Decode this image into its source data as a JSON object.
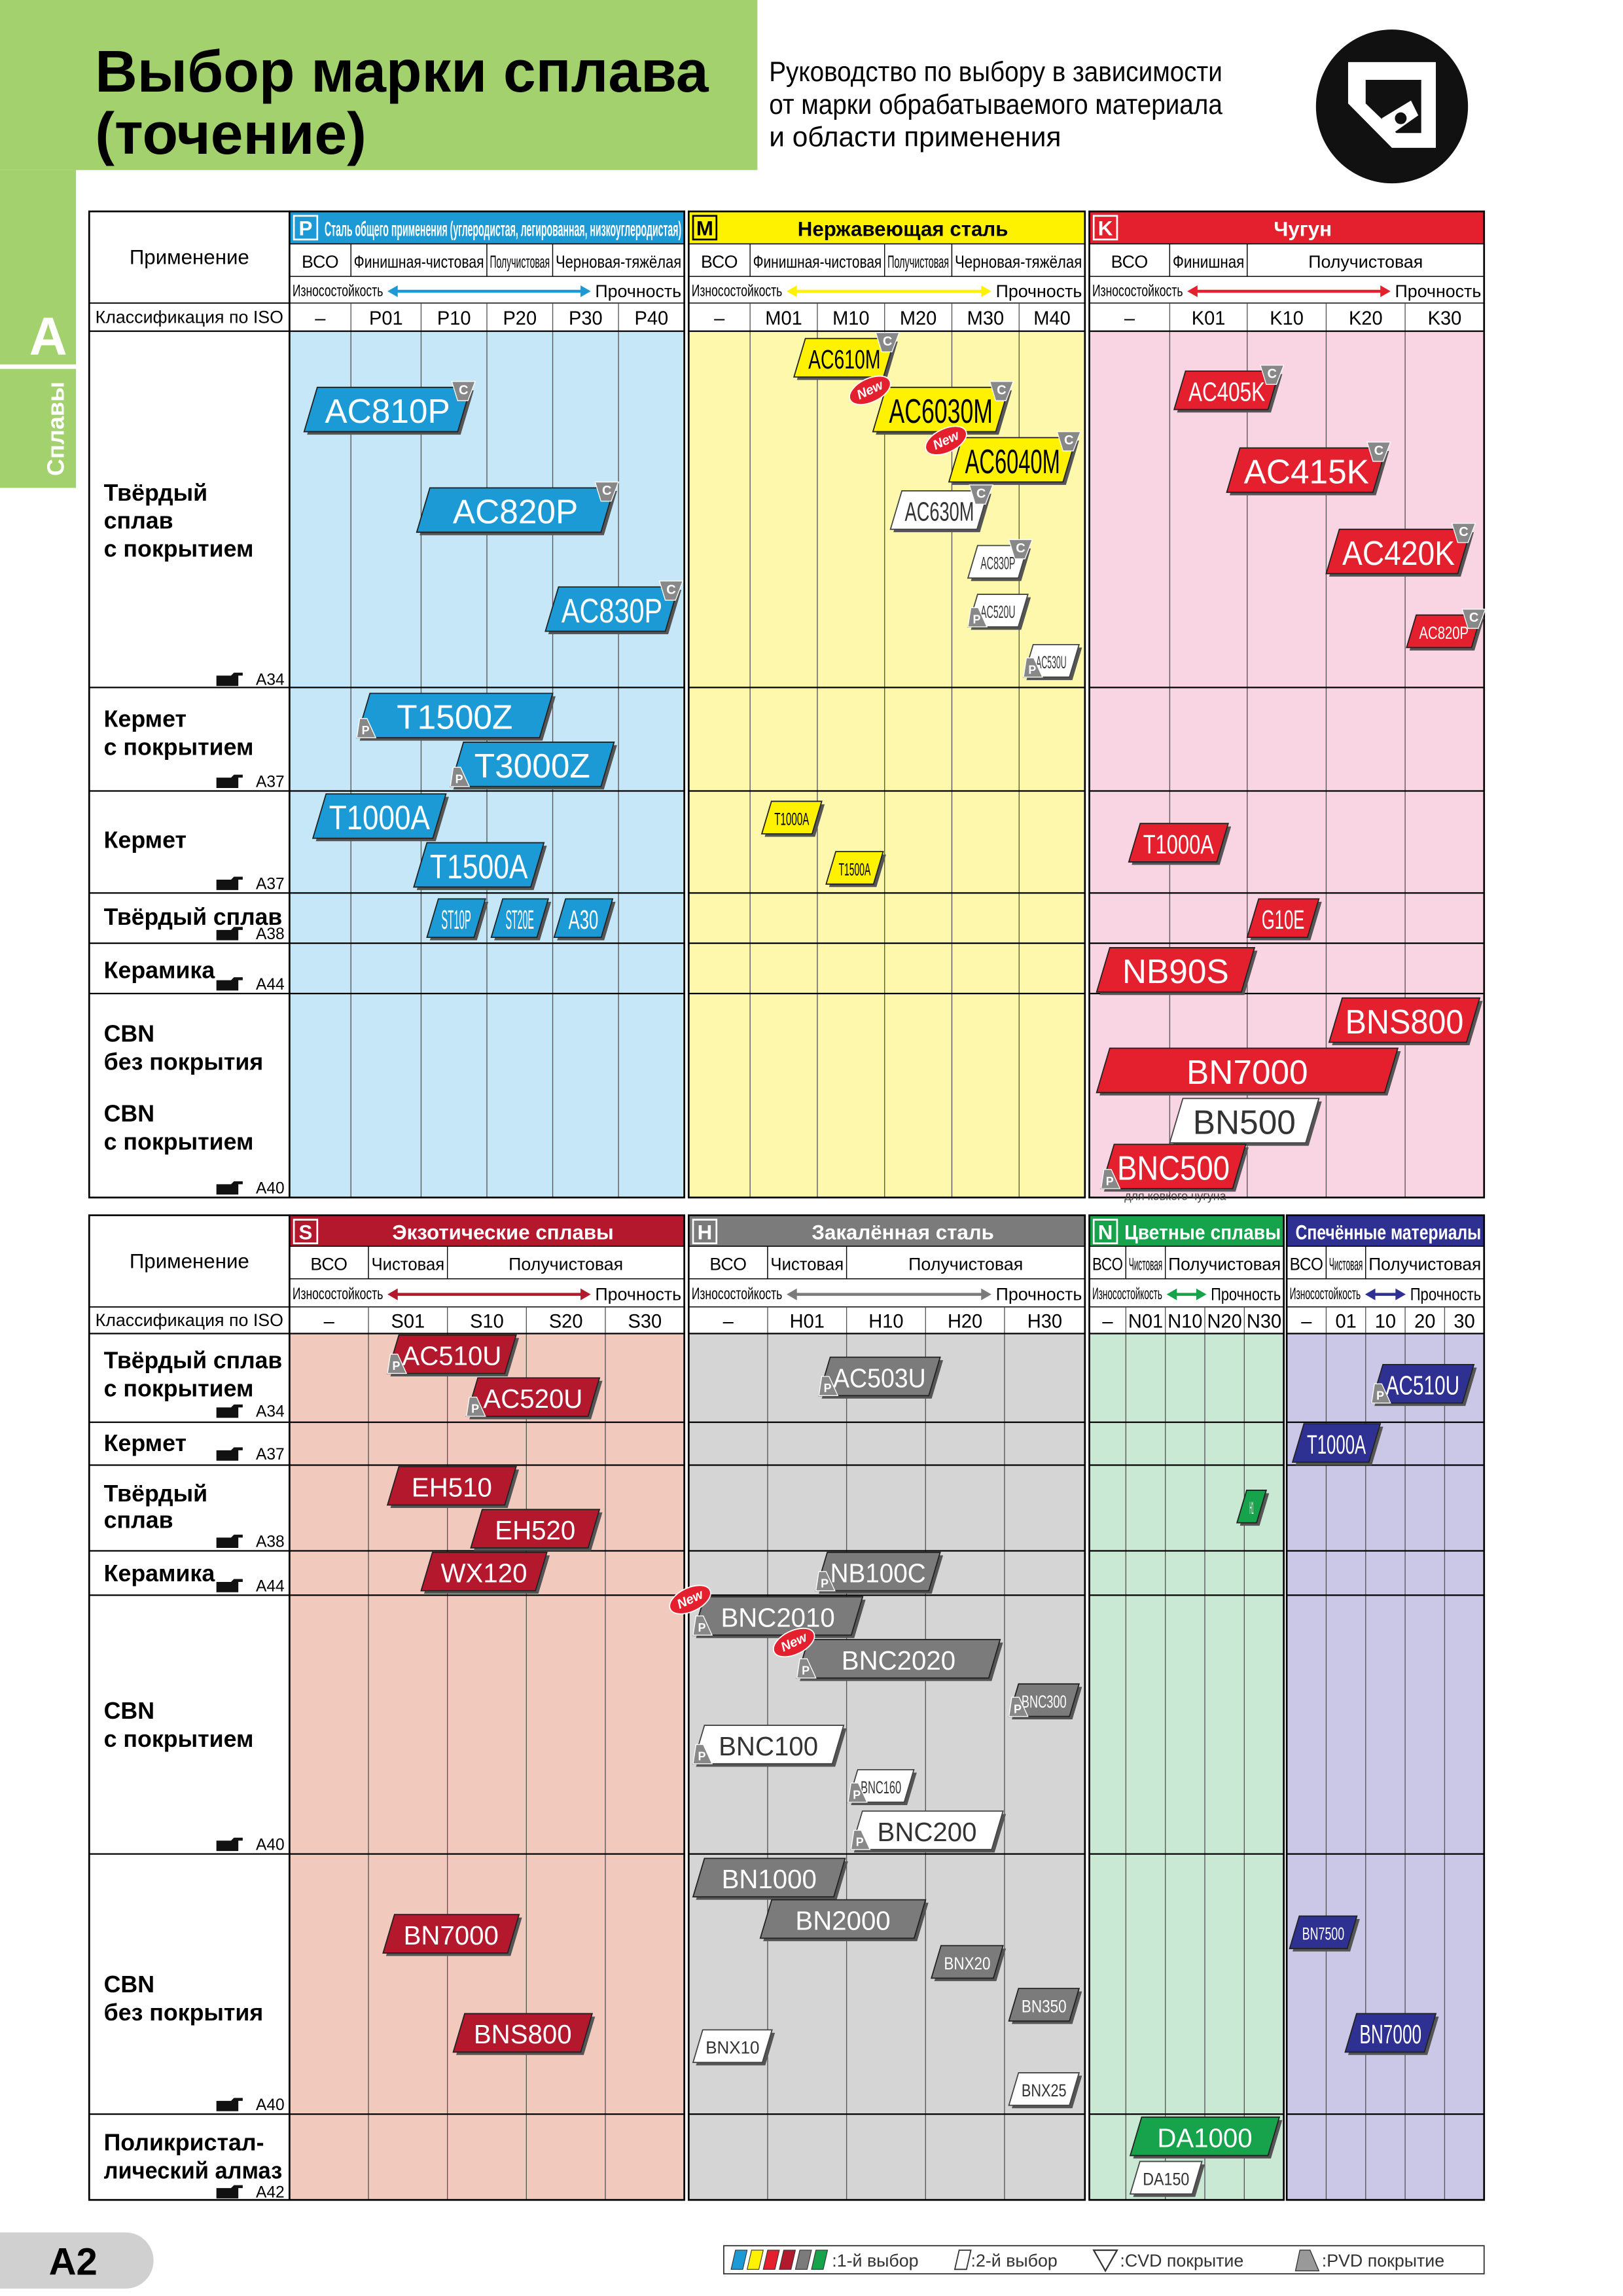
{
  "header": {
    "title": [
      "Выбор марки сплава",
      "(точение)"
    ],
    "subtitle": [
      "Руководство по выбору в зависимости",
      "от марки обрабатываемого материала",
      "и области применения"
    ],
    "tab": "A",
    "section": "Сплавы",
    "color": "#a3d16e"
  },
  "tables": [
    {
      "application_label": "Применение",
      "iso_label": "Классификация по ISO",
      "rows": [
        {
          "label": [
            "Твёрдый",
            "сплав",
            "с покрытием"
          ],
          "ref": "A34"
        },
        {
          "label": [
            "Кермет",
            "с покрытием"
          ],
          "ref": "A37"
        },
        {
          "label": [
            "Кермет"
          ],
          "ref": "A37"
        },
        {
          "label": [
            "Твёрдый сплав"
          ],
          "ref": "A38"
        },
        {
          "label": [
            "Керамика"
          ],
          "ref": "A44"
        },
        {
          "label": [
            "CBN",
            "без покрытия",
            "CBN",
            "с покрытием"
          ],
          "ref": "A40"
        }
      ],
      "groups": [
        {
          "letter": "P",
          "name": "Сталь общего применения (углеродистая, легированная, низкоуглеродистая)",
          "color": "#1b9ad6",
          "text_color": "#ffffff",
          "body_color": "#c6e7f8",
          "applications": [
            "ВСО",
            "Финишная-чистовая",
            "Получистовая",
            "Черновая-тяжёлая"
          ],
          "wear": "Износостойкость",
          "strength": "Прочность",
          "iso": [
            "–",
            "P01",
            "P10",
            "P20",
            "P30",
            "P40"
          ],
          "grades": [
            {
              "label": "AC810P",
              "fill": "#1b9ad6",
              "coating": "C"
            },
            {
              "label": "AC820P",
              "fill": "#1b9ad6",
              "coating": "C"
            },
            {
              "label": "AC830P",
              "fill": "#1b9ad6",
              "coating": "C"
            },
            {
              "label": "T1500Z",
              "fill": "#1b9ad6",
              "coating": "P"
            },
            {
              "label": "T3000Z",
              "fill": "#1b9ad6",
              "coating": "P"
            },
            {
              "label": "T1000A",
              "fill": "#1b9ad6"
            },
            {
              "label": "T1500A",
              "fill": "#1b9ad6"
            },
            {
              "label": "ST10P",
              "fill": "#1b9ad6"
            },
            {
              "label": "ST20E",
              "fill": "#1b9ad6"
            },
            {
              "label": "A30",
              "fill": "#1b9ad6"
            }
          ]
        },
        {
          "letter": "M",
          "name": "Нержавеющая сталь",
          "color": "#fff200",
          "text_color": "#000000",
          "body_color": "#fdf8ab",
          "applications": [
            "ВСО",
            "Финишная-чистовая",
            "Получистовая",
            "Черновая-тяжёлая"
          ],
          "wear": "Износостойкость",
          "strength": "Прочность",
          "iso": [
            "–",
            "M01",
            "M10",
            "M20",
            "M30",
            "M40"
          ],
          "grades": [
            {
              "label": "AC610M",
              "fill": "#fff200",
              "coating": "C"
            },
            {
              "label": "AC6030M",
              "fill": "#fff200",
              "coating": "C",
              "new": "New"
            },
            {
              "label": "AC6040M",
              "fill": "#fff200",
              "coating": "C",
              "new": "New"
            },
            {
              "label": "AC630M",
              "fill": "#ffffff",
              "coating": "C"
            },
            {
              "label": "AC830P",
              "fill": "#ffffff",
              "coating": "C"
            },
            {
              "label": "AC520U",
              "fill": "#ffffff",
              "coating": "P"
            },
            {
              "label": "AC530U",
              "fill": "#ffffff",
              "coating": "P"
            },
            {
              "label": "T1000A",
              "fill": "#fff200"
            },
            {
              "label": "T1500A",
              "fill": "#fff200"
            }
          ]
        },
        {
          "letter": "K",
          "name": "Чугун",
          "color": "#e4202e",
          "text_color": "#ffffff",
          "body_color": "#f9d4e2",
          "applications": [
            "ВСО",
            "Финишная",
            "Получистовая"
          ],
          "wear": "Износостойкость",
          "strength": "Прочность",
          "iso": [
            "–",
            "K01",
            "K10",
            "K20",
            "K30"
          ],
          "grades": [
            {
              "label": "AC405K",
              "fill": "#e4202e",
              "coating": "C"
            },
            {
              "label": "AC415K",
              "fill": "#e4202e",
              "coating": "C"
            },
            {
              "label": "AC420K",
              "fill": "#e4202e",
              "coating": "C"
            },
            {
              "label": "AC820P",
              "fill": "#e4202e",
              "coating": "C"
            },
            {
              "label": "T1000A",
              "fill": "#e4202e"
            },
            {
              "label": "G10E",
              "fill": "#e4202e"
            },
            {
              "label": "NB90S",
              "fill": "#e4202e"
            },
            {
              "label": "BNS800",
              "fill": "#e4202e"
            },
            {
              "label": "BN7000",
              "fill": "#e4202e"
            },
            {
              "label": "BN500",
              "fill": "#ffffff"
            },
            {
              "label": "BNC500",
              "fill": "#e4202e",
              "coating": "P",
              "note": "для ковкого чугуна"
            }
          ]
        }
      ]
    },
    {
      "application_label": "Применение",
      "iso_label": "Классификация по ISO",
      "rows": [
        {
          "label": [
            "Твёрдый сплав",
            "с покрытием"
          ],
          "ref": "A34"
        },
        {
          "label": [
            "Кермет"
          ],
          "ref": "A37"
        },
        {
          "label": [
            "Твёрдый",
            "сплав"
          ],
          "ref": "A38"
        },
        {
          "label": [
            "Керамика"
          ],
          "ref": "A44"
        },
        {
          "label": [
            "CBN",
            "с покрытием"
          ],
          "ref": "A40"
        },
        {
          "label": [
            "CBN",
            "без покрытия"
          ],
          "ref": "A40"
        },
        {
          "label": [
            "Поликристал-",
            "лический алмаз"
          ],
          "ref": "A42"
        }
      ],
      "groups": [
        {
          "letter": "S",
          "name": "Экзотические сплавы",
          "color": "#b3182d",
          "text_color": "#ffffff",
          "body_color": "#f2cabd",
          "applications": [
            "ВСО",
            "Чистовая",
            "Получистовая"
          ],
          "wear": "Износостойкость",
          "strength": "Прочность",
          "iso": [
            "–",
            "S01",
            "S10",
            "S20",
            "S30"
          ],
          "grades": [
            {
              "label": "AC510U",
              "fill": "#b3182d",
              "coating": "P"
            },
            {
              "label": "AC520U",
              "fill": "#b3182d",
              "coating": "P"
            },
            {
              "label": "EH510",
              "fill": "#b3182d"
            },
            {
              "label": "EH520",
              "fill": "#b3182d"
            },
            {
              "label": "WX120",
              "fill": "#b3182d"
            },
            {
              "label": "BN7000",
              "fill": "#b3182d"
            },
            {
              "label": "BNS800",
              "fill": "#b3182d"
            }
          ]
        },
        {
          "letter": "H",
          "name": "Закалённая сталь",
          "color": "#7b7b7b",
          "text_color": "#ffffff",
          "body_color": "#d5d5d5",
          "applications": [
            "ВСО",
            "Чистовая",
            "Получистовая"
          ],
          "wear": "Износостойкость",
          "strength": "Прочность",
          "iso": [
            "–",
            "H01",
            "H10",
            "H20",
            "H30"
          ],
          "grades": [
            {
              "label": "AC503U",
              "fill": "#7b7b7b",
              "coating": "P"
            },
            {
              "label": "NB100C",
              "fill": "#7b7b7b",
              "coating": "P"
            },
            {
              "label": "BNC2010",
              "fill": "#7b7b7b",
              "coating": "P",
              "new": "New"
            },
            {
              "label": "BNC2020",
              "fill": "#7b7b7b",
              "coating": "P",
              "new": "New"
            },
            {
              "label": "BNC300",
              "fill": "#7b7b7b",
              "coating": "P"
            },
            {
              "label": "BNC100",
              "fill": "#ffffff",
              "coating": "P"
            },
            {
              "label": "BNC160",
              "fill": "#ffffff",
              "coating": "P"
            },
            {
              "label": "BNC200",
              "fill": "#ffffff",
              "coating": "P"
            },
            {
              "label": "BN1000",
              "fill": "#7b7b7b"
            },
            {
              "label": "BN2000",
              "fill": "#7b7b7b"
            },
            {
              "label": "BNX20",
              "fill": "#7b7b7b"
            },
            {
              "label": "BN350",
              "fill": "#7b7b7b"
            },
            {
              "label": "BNX10",
              "fill": "#ffffff"
            },
            {
              "label": "BNX25",
              "fill": "#ffffff"
            }
          ]
        },
        {
          "letter": "N",
          "name": "Цветные сплавы",
          "color": "#16a34b",
          "text_color": "#ffffff",
          "body_color": "#cae9d4",
          "applications": [
            "ВСО",
            "Чистовая",
            "Получистовая"
          ],
          "wear": "Износостойкость",
          "strength": "Прочность",
          "iso": [
            "–",
            "N01",
            "N10",
            "N20",
            "N30"
          ],
          "grades": [
            {
              "label": "H1",
              "fill": "#16a34b"
            },
            {
              "label": "DA1000",
              "fill": "#16a34b"
            },
            {
              "label": "DA150",
              "fill": "#ffffff"
            }
          ]
        },
        {
          "name": "Спечённые материалы",
          "color": "#2e3192",
          "text_color": "#ffffff",
          "body_color": "#cbc7e6",
          "applications": [
            "ВСО",
            "Чистовая",
            "Получистовая"
          ],
          "wear": "Износостойкость",
          "strength": "Прочность",
          "iso": [
            "–",
            "01",
            "10",
            "20",
            "30"
          ],
          "grades": [
            {
              "label": "AC510U",
              "fill": "#2e3192",
              "coating": "P"
            },
            {
              "label": "T1000A",
              "fill": "#2e3192"
            },
            {
              "label": "BN7500",
              "fill": "#2e3192"
            },
            {
              "label": "BN7000",
              "fill": "#2e3192"
            }
          ]
        }
      ]
    }
  ],
  "legend": {
    "first": ":1-й выбор",
    "second": ":2-й выбор",
    "cvd": ":CVD покрытие",
    "pvd": ":PVD покрытие"
  },
  "page_number": "A2"
}
